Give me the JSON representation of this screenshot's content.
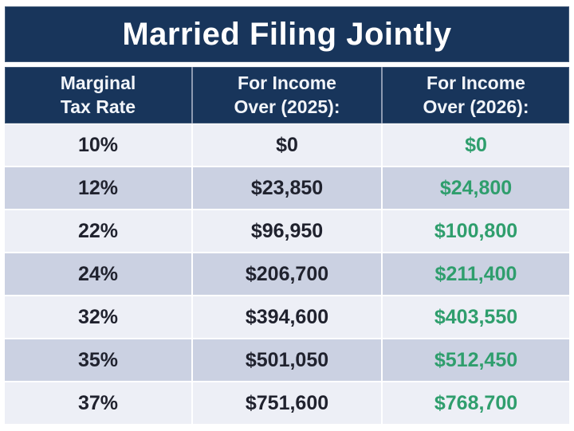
{
  "title": "Married Filing Jointly",
  "colors": {
    "navy": "#18355b",
    "row_light": "#edeff6",
    "row_dark": "#cbd1e2",
    "green_value": "#2f9e6d",
    "dark_text": "#20222e",
    "header_text": "#ffffff"
  },
  "table": {
    "columns": [
      {
        "line1": "Marginal",
        "line2": "Tax Rate"
      },
      {
        "line1": "For Income",
        "line2": "Over (2025):"
      },
      {
        "line1": "For Income",
        "line2": "Over (2026):"
      }
    ],
    "rows": [
      {
        "rate": "10%",
        "income_2025": "$0",
        "income_2026": "$0"
      },
      {
        "rate": "12%",
        "income_2025": "$23,850",
        "income_2026": "$24,800"
      },
      {
        "rate": "22%",
        "income_2025": "$96,950",
        "income_2026": "$100,800"
      },
      {
        "rate": "24%",
        "income_2025": "$206,700",
        "income_2026": "$211,400"
      },
      {
        "rate": "32%",
        "income_2025": "$394,600",
        "income_2026": "$403,550"
      },
      {
        "rate": "35%",
        "income_2025": "$501,050",
        "income_2026": "$512,450"
      },
      {
        "rate": "37%",
        "income_2025": "$751,600",
        "income_2026": "$768,700"
      }
    ]
  },
  "chart_data": {
    "type": "table",
    "title": "Married Filing Jointly",
    "columns": [
      "Marginal Tax Rate",
      "For Income Over (2025):",
      "For Income Over (2026):"
    ],
    "rows": [
      [
        "10%",
        0,
        0
      ],
      [
        "12%",
        23850,
        24800
      ],
      [
        "22%",
        96950,
        100800
      ],
      [
        "24%",
        206700,
        211400
      ],
      [
        "32%",
        394600,
        403550
      ],
      [
        "35%",
        501050,
        512450
      ],
      [
        "37%",
        751600,
        768700
      ]
    ]
  }
}
